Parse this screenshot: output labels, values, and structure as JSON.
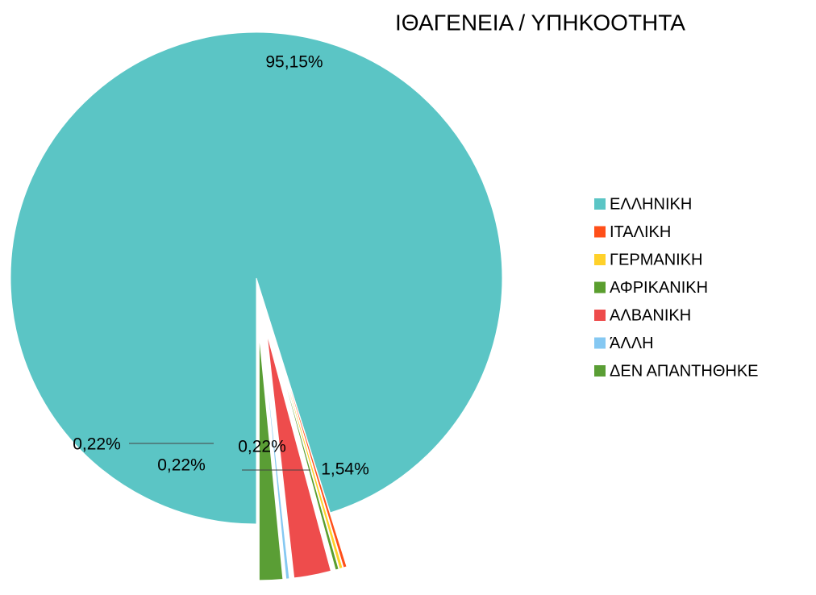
{
  "chart_data": {
    "type": "pie",
    "title": "ΙΘΑΓΕΝΕΙΑ / ΥΠΗΚΟΟΤΗΤΑ",
    "categories": [
      "ΕΛΛΗΝΙΚΗ",
      "ΙΤΑΛΙΚΗ",
      "ΓΕΡΜΑΝΙΚΗ",
      "ΑΦΡΙΚΑΝΙΚΗ",
      "ΑΛΒΑΝΙΚΗ",
      "ΆΛΛΗ",
      "ΔΕΝ ΑΠΑΝΤΗΘΗΚΕ"
    ],
    "values": [
      95.15,
      0.22,
      0.22,
      0.22,
      2.43,
      0.22,
      1.54
    ],
    "value_labels": [
      "95,15%",
      "0,22%",
      "0,22%",
      null,
      null,
      "0,22%",
      "1,54%"
    ],
    "colors": [
      "#5bc5c5",
      "#ff4f19",
      "#ffd12a",
      "#5a9e2e",
      "#ee4c4c",
      "#85c8f2",
      "#5a9e35"
    ],
    "legend": "right"
  }
}
